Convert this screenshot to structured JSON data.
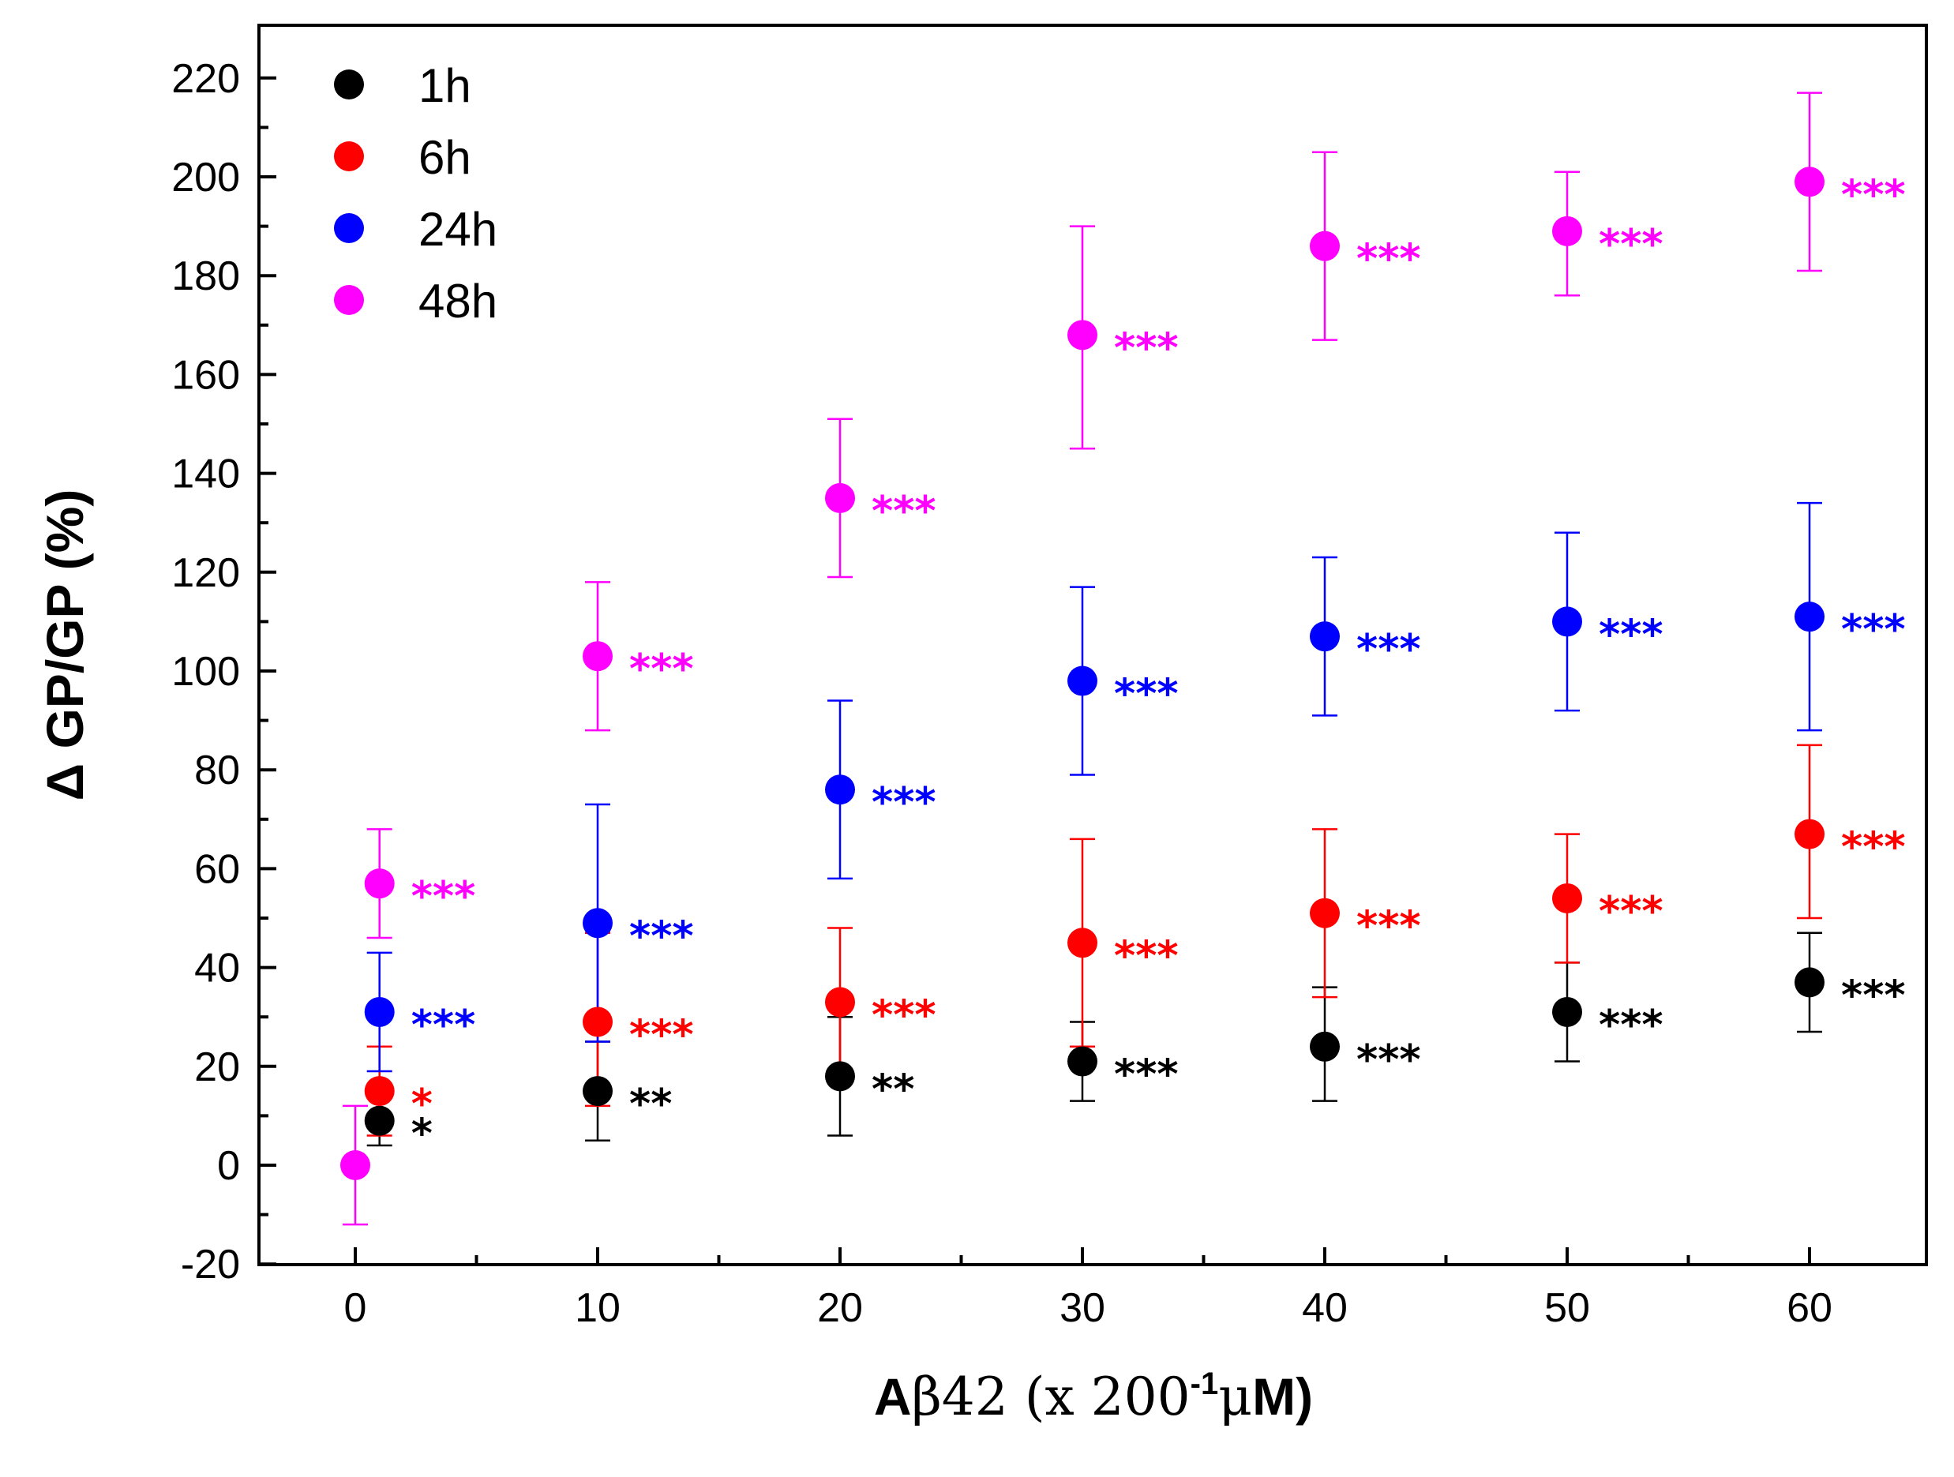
{
  "chart_data": {
    "type": "scatter",
    "title": "",
    "xlabel": {
      "prefix": "A",
      "beta": "β",
      "middle": "42 (x 200",
      "superscript": "-1",
      "mu": "μ",
      "suffix": "M)"
    },
    "ylabel": "Δ GP/GP (%)",
    "xlim": [
      -4,
      64
    ],
    "ylim": [
      -20,
      220
    ],
    "xticks": [
      "0",
      "10",
      "20",
      "30",
      "40",
      "50",
      "60"
    ],
    "yticks": [
      "-20",
      "0",
      "20",
      "40",
      "60",
      "80",
      "100",
      "120",
      "140",
      "160",
      "180",
      "200",
      "220"
    ],
    "legend_position": "top-left",
    "series": [
      {
        "name": "1h",
        "color": "#000000",
        "points": [
          {
            "x": 1,
            "y": 9,
            "err_lo": 5,
            "err_hi": 7,
            "sig": "*"
          },
          {
            "x": 10,
            "y": 15,
            "err_lo": 10,
            "err_hi": 10,
            "sig": "**"
          },
          {
            "x": 20,
            "y": 18,
            "err_lo": 12,
            "err_hi": 12,
            "sig": "**"
          },
          {
            "x": 30,
            "y": 21,
            "err_lo": 8,
            "err_hi": 8,
            "sig": "***"
          },
          {
            "x": 40,
            "y": 24,
            "err_lo": 11,
            "err_hi": 12,
            "sig": "***"
          },
          {
            "x": 50,
            "y": 31,
            "err_lo": 10,
            "err_hi": 10,
            "sig": "***"
          },
          {
            "x": 60,
            "y": 37,
            "err_lo": 10,
            "err_hi": 10,
            "sig": "***"
          }
        ]
      },
      {
        "name": "6h",
        "color": "#ff0000",
        "points": [
          {
            "x": 1,
            "y": 15,
            "err_lo": 9,
            "err_hi": 9,
            "sig": "*"
          },
          {
            "x": 10,
            "y": 29,
            "err_lo": 17,
            "err_hi": 18,
            "sig": "***"
          },
          {
            "x": 20,
            "y": 33,
            "err_lo": 15,
            "err_hi": 15,
            "sig": "***"
          },
          {
            "x": 30,
            "y": 45,
            "err_lo": 21,
            "err_hi": 21,
            "sig": "***"
          },
          {
            "x": 40,
            "y": 51,
            "err_lo": 17,
            "err_hi": 17,
            "sig": "***"
          },
          {
            "x": 50,
            "y": 54,
            "err_lo": 13,
            "err_hi": 13,
            "sig": "***"
          },
          {
            "x": 60,
            "y": 67,
            "err_lo": 17,
            "err_hi": 18,
            "sig": "***"
          }
        ]
      },
      {
        "name": "24h",
        "color": "#0000ff",
        "points": [
          {
            "x": 1,
            "y": 31,
            "err_lo": 12,
            "err_hi": 12,
            "sig": "***"
          },
          {
            "x": 10,
            "y": 49,
            "err_lo": 24,
            "err_hi": 24,
            "sig": "***"
          },
          {
            "x": 20,
            "y": 76,
            "err_lo": 18,
            "err_hi": 18,
            "sig": "***"
          },
          {
            "x": 30,
            "y": 98,
            "err_lo": 19,
            "err_hi": 19,
            "sig": "***"
          },
          {
            "x": 40,
            "y": 107,
            "err_lo": 16,
            "err_hi": 16,
            "sig": "***"
          },
          {
            "x": 50,
            "y": 110,
            "err_lo": 18,
            "err_hi": 18,
            "sig": "***"
          },
          {
            "x": 60,
            "y": 111,
            "err_lo": 23,
            "err_hi": 23,
            "sig": "***"
          }
        ]
      },
      {
        "name": "48h",
        "color": "#ff00ff",
        "points": [
          {
            "x": 0,
            "y": 0,
            "err_lo": 12,
            "err_hi": 12,
            "sig": ""
          },
          {
            "x": 1,
            "y": 57,
            "err_lo": 11,
            "err_hi": 11,
            "sig": "***"
          },
          {
            "x": 10,
            "y": 103,
            "err_lo": 15,
            "err_hi": 15,
            "sig": "***"
          },
          {
            "x": 20,
            "y": 135,
            "err_lo": 16,
            "err_hi": 16,
            "sig": "***"
          },
          {
            "x": 30,
            "y": 168,
            "err_lo": 23,
            "err_hi": 22,
            "sig": "***"
          },
          {
            "x": 40,
            "y": 186,
            "err_lo": 19,
            "err_hi": 19,
            "sig": "***"
          },
          {
            "x": 50,
            "y": 189,
            "err_lo": 13,
            "err_hi": 12,
            "sig": "***"
          },
          {
            "x": 60,
            "y": 199,
            "err_lo": 18,
            "err_hi": 18,
            "sig": "***"
          }
        ]
      }
    ]
  }
}
